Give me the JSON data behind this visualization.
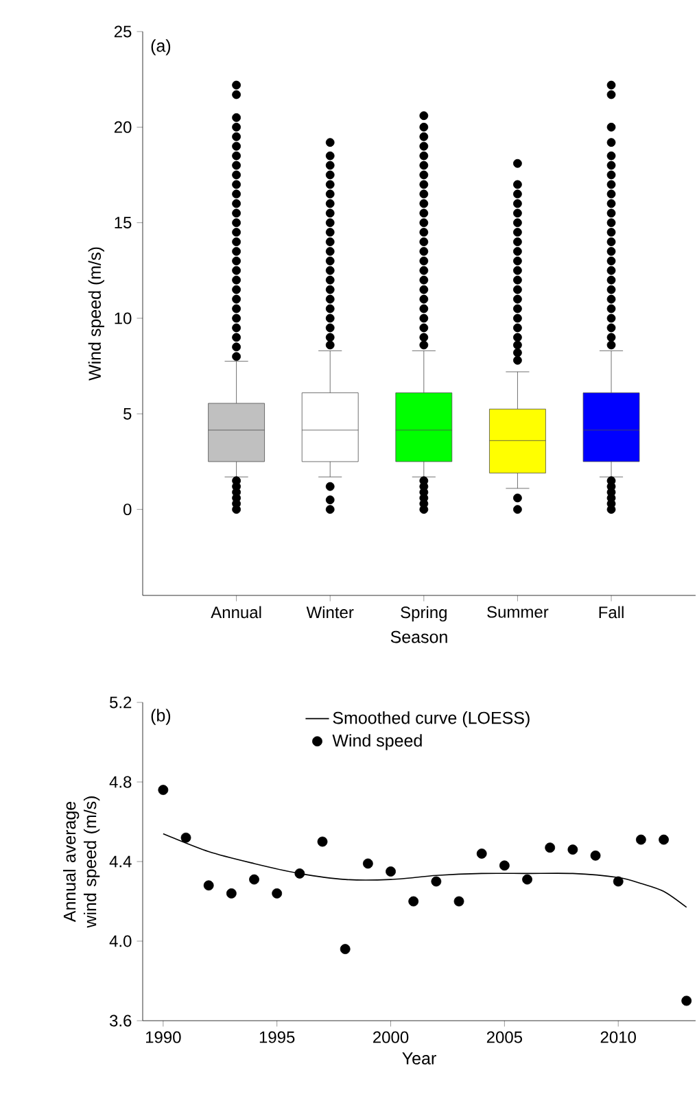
{
  "chart_data": [
    {
      "type": "box",
      "categories": [
        "Annual",
        "Winter",
        "Spring",
        "Summer",
        "Fall"
      ],
      "xlabel": "Season",
      "ylabel": "Wind speed (m/s)",
      "ylim": [
        -4.5,
        25
      ],
      "yticks": [
        0,
        5,
        10,
        15,
        20,
        25
      ],
      "colors": [
        "#c0c0c0",
        "#ffffff",
        "#00ff00",
        "#ffff00",
        "#0000ff"
      ],
      "annotations": [
        "(a)"
      ],
      "boxes": [
        {
          "low": 1.7,
          "q1": 2.5,
          "median": 4.15,
          "q3": 5.55,
          "high": 7.75,
          "outliers": [
            0,
            0.3,
            0.6,
            0.9,
            1.2,
            1.5,
            8,
            8.5,
            9,
            9.5,
            10,
            10.5,
            11,
            11.5,
            12,
            12.5,
            13,
            13.5,
            14,
            14.5,
            15,
            15.5,
            16,
            16.5,
            17,
            17.5,
            18,
            18.5,
            19,
            19.5,
            20,
            20.5,
            21.7,
            22.2
          ]
        },
        {
          "low": 1.7,
          "q1": 2.5,
          "median": 4.15,
          "q3": 6.1,
          "high": 8.3,
          "outliers": [
            0,
            0.5,
            1.2,
            8.6,
            9,
            9.5,
            10,
            10.5,
            11,
            11.5,
            12,
            12.5,
            13,
            13.5,
            14,
            14.5,
            15,
            15.5,
            16,
            16.5,
            17,
            17.5,
            18,
            18.5,
            19.2
          ]
        },
        {
          "low": 1.7,
          "q1": 2.5,
          "median": 4.15,
          "q3": 6.1,
          "high": 8.3,
          "outliers": [
            0,
            0.3,
            0.6,
            0.9,
            1.2,
            1.5,
            8.6,
            9,
            9.5,
            10,
            10.5,
            11,
            11.5,
            12,
            12.5,
            13,
            13.5,
            14,
            14.5,
            15,
            15.5,
            16,
            16.5,
            17,
            17.5,
            18,
            18.5,
            19,
            19.5,
            20,
            20.6
          ]
        },
        {
          "low": 1.1,
          "q1": 1.9,
          "median": 3.6,
          "q3": 5.25,
          "high": 7.2,
          "outliers": [
            0,
            0.6,
            7.8,
            8.2,
            8.6,
            9,
            9.5,
            10,
            10.5,
            11,
            11.5,
            12,
            12.5,
            13,
            13.5,
            14,
            14.5,
            15,
            15.5,
            16,
            16.5,
            17,
            18.1
          ]
        },
        {
          "low": 1.7,
          "q1": 2.5,
          "median": 4.15,
          "q3": 6.1,
          "high": 8.3,
          "outliers": [
            0,
            0.3,
            0.6,
            0.9,
            1.2,
            1.5,
            8.6,
            9,
            9.5,
            10,
            10.5,
            11,
            11.5,
            12,
            12.5,
            13,
            13.5,
            14,
            14.5,
            15,
            15.5,
            16,
            16.5,
            17,
            17.5,
            18,
            18.5,
            19.2,
            20,
            21.7,
            22.2
          ]
        }
      ]
    },
    {
      "type": "scatter",
      "xlabel": "Year",
      "ylabel": "Annual average wind speed (m/s)",
      "xlim": [
        1989.1,
        2013.4
      ],
      "ylim": [
        3.6,
        5.2
      ],
      "xticks": [
        1990,
        1995,
        2000,
        2005,
        2010
      ],
      "yticks": [
        3.6,
        {
          "value": 4,
          "label": "4.0"
        },
        4.4,
        4.8,
        5.2
      ],
      "legend": "top",
      "annotations": [
        "(b)"
      ],
      "series": [
        {
          "name": "Smoothed curve (LOESS)",
          "type": "line",
          "color": "#000000",
          "marker": "none",
          "x": [
            1990,
            1992,
            1994,
            1996,
            1998,
            2000,
            2002,
            2004,
            2006,
            2008,
            2010,
            2011,
            2012,
            2013
          ],
          "values": [
            4.54,
            4.45,
            4.39,
            4.34,
            4.31,
            4.31,
            4.33,
            4.34,
            4.34,
            4.34,
            4.32,
            4.29,
            4.25,
            4.17
          ]
        },
        {
          "name": "Wind speed",
          "type": "scatter",
          "color": "#000000",
          "marker": "circle",
          "x": [
            1990,
            1991,
            1992,
            1993,
            1994,
            1995,
            1996,
            1997,
            1998,
            1999,
            2000,
            2001,
            2002,
            2003,
            2004,
            2005,
            2006,
            2007,
            2008,
            2009,
            2010,
            2011,
            2012,
            2013
          ],
          "values": [
            4.76,
            4.52,
            4.28,
            4.24,
            4.31,
            4.24,
            4.34,
            4.5,
            3.96,
            4.39,
            4.35,
            4.2,
            4.3,
            4.2,
            4.44,
            4.38,
            4.31,
            4.47,
            4.46,
            4.43,
            4.3,
            4.51,
            4.51,
            3.7
          ]
        }
      ]
    }
  ]
}
